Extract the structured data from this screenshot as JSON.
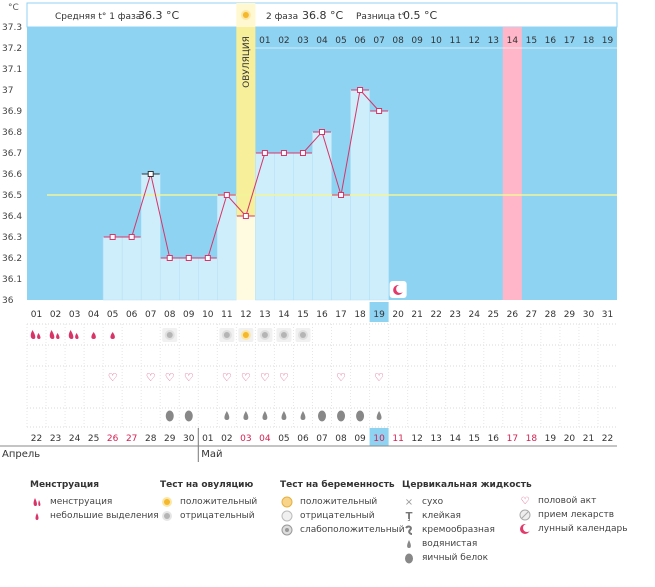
{
  "header": {
    "phase1_label": "Средняя t° 1 фаза",
    "phase1_value": "36.3 °C",
    "phase2_label": "2 фаза",
    "phase2_value": "36.8 °C",
    "diff_label": "Разница t°",
    "diff_value": "0.5 °C",
    "ovulation_label": "ОВУЛЯЦИЯ"
  },
  "unit": "°C",
  "y_ticks": [
    "37.3",
    "37.2",
    "37.1",
    "37",
    "36.9",
    "36.8",
    "36.7",
    "36.6",
    "36.5",
    "36.4",
    "36.3",
    "36.2",
    "36.1",
    "36"
  ],
  "cycle_days": [
    "01",
    "02",
    "03",
    "04",
    "05",
    "06",
    "07",
    "08",
    "09",
    "10",
    "11",
    "12",
    "13",
    "14",
    "15",
    "16",
    "17",
    "18",
    "19",
    "20",
    "21",
    "22",
    "23",
    "24",
    "25",
    "26",
    "27",
    "28",
    "29",
    "30",
    "31"
  ],
  "post_ov_days": [
    "01",
    "02",
    "03",
    "04",
    "05",
    "06",
    "07",
    "08",
    "09",
    "10",
    "11",
    "12",
    "13",
    "14",
    "15",
    "16",
    "17",
    "18",
    "19"
  ],
  "dates": [
    "22",
    "23",
    "24",
    "25",
    "26",
    "27",
    "28",
    "29",
    "30",
    "01",
    "02",
    "03",
    "04",
    "05",
    "06",
    "07",
    "08",
    "09",
    "10",
    "11",
    "12",
    "13",
    "14",
    "15",
    "16",
    "17",
    "18",
    "19",
    "20",
    "21",
    "22"
  ],
  "months": [
    "Апрель",
    "Май"
  ],
  "chart_data": {
    "type": "line",
    "x": [
      5,
      6,
      7,
      8,
      9,
      10,
      11,
      12,
      13,
      14,
      15,
      16,
      17,
      18,
      19
    ],
    "y": [
      36.3,
      36.3,
      36.6,
      36.2,
      36.2,
      36.2,
      36.5,
      36.4,
      36.7,
      36.7,
      36.7,
      36.8,
      36.5,
      37.0,
      36.9
    ],
    "ylim": [
      36.0,
      37.3
    ],
    "coverline": 36.5,
    "ovulation_day": 12,
    "current_day": 19,
    "predicted_period_day": 26,
    "moon_day": 20
  },
  "colors": {
    "sky": "#8fd3f3",
    "bar": "#cfeefb",
    "ovulation": "#f7ef9a",
    "predicted": "#ffb6c8",
    "line": "#d83468",
    "today": "#8fd3f3",
    "weekend": "#d42051"
  },
  "symbols": {
    "menstruation": {
      "1": "heavy",
      "2": "heavy",
      "3": "heavy",
      "4": "light",
      "5": "light"
    },
    "ovulation_test": {
      "8": "negative",
      "11": "negative",
      "12": "positive",
      "13": "negative",
      "14": "negative",
      "15": "negative"
    },
    "intercourse": [
      5,
      7,
      8,
      9,
      11,
      12,
      13,
      14,
      17,
      19
    ],
    "cervical": {
      "8": "egg-white",
      "9": "egg-white",
      "11": "watery",
      "12": "watery",
      "13": "watery",
      "14": "watery",
      "15": "watery",
      "16": "egg-white",
      "17": "egg-white",
      "18": "egg-white",
      "19": "watery"
    }
  },
  "weekend_date_index": [
    4,
    5,
    11,
    12,
    18,
    19,
    25,
    26
  ],
  "legend": {
    "menstruation": {
      "title": "Менструация",
      "items": [
        {
          "icon": "drop-heavy-icon",
          "label": "менструация"
        },
        {
          "icon": "drop-light-icon",
          "label": "небольшие выделения"
        }
      ]
    },
    "ovulation_test": {
      "title": "Тест на овуляцию",
      "items": [
        {
          "icon": "sun-positive-icon",
          "label": "положительный"
        },
        {
          "icon": "sun-negative-icon",
          "label": "отрицательный"
        }
      ]
    },
    "pregnancy_test": {
      "title": "Тест на беременность",
      "items": [
        {
          "icon": "circle-positive-icon",
          "label": "положительный"
        },
        {
          "icon": "circle-negative-icon",
          "label": "отрицательный"
        },
        {
          "icon": "circle-weak-icon",
          "label": "слабоположительный"
        }
      ]
    },
    "cervical": {
      "title": "Цервикальная жидкость",
      "items": [
        {
          "icon": "dry-icon",
          "label": "сухо"
        },
        {
          "icon": "sticky-icon",
          "label": "клейкая"
        },
        {
          "icon": "creamy-icon",
          "label": "кремообразная"
        },
        {
          "icon": "watery-icon",
          "label": "водянистая"
        },
        {
          "icon": "egg-white-icon",
          "label": "яичный белок"
        }
      ]
    },
    "other": {
      "items": [
        {
          "icon": "heart-icon",
          "label": "половой акт"
        },
        {
          "icon": "pill-icon",
          "label": "прием лекарств"
        },
        {
          "icon": "moon-icon",
          "label": "лунный календарь"
        }
      ]
    }
  }
}
